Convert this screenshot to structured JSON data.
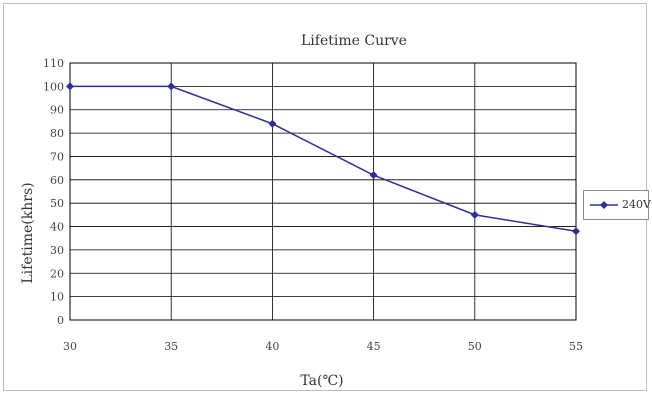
{
  "chart_data": {
    "type": "line",
    "title": "Lifetime Curve",
    "xlabel": "Ta(℃)",
    "ylabel": "Lifetime(khrs)",
    "x": [
      30,
      35,
      40,
      45,
      50,
      55
    ],
    "xticks": [
      "30",
      "35",
      "40",
      "45",
      "50",
      "55"
    ],
    "yticks": [
      "0",
      "10",
      "20",
      "30",
      "40",
      "50",
      "60",
      "70",
      "80",
      "90",
      "100",
      "110"
    ],
    "ylim": [
      0,
      110
    ],
    "grid": true,
    "legend_position": "right",
    "series": [
      {
        "name": "240V",
        "color": "#2e3192",
        "values": [
          100,
          100,
          84,
          62,
          45,
          38
        ]
      }
    ]
  }
}
